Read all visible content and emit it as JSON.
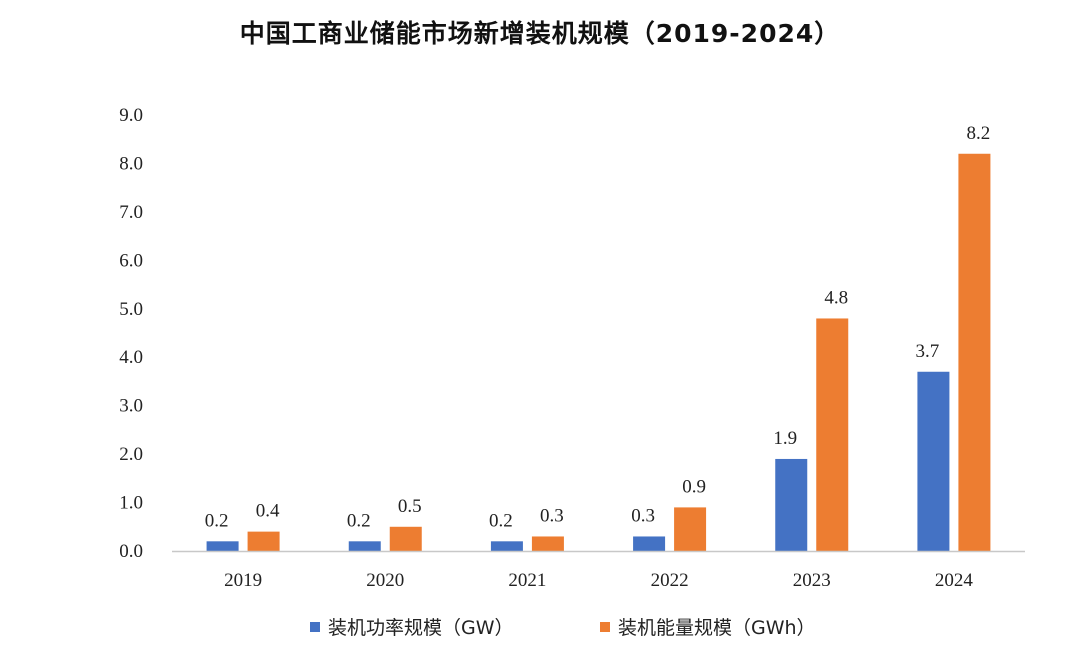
{
  "chart_data": {
    "type": "bar",
    "title": "中国工商业储能市场新增装机规模（2019-2024）",
    "categories": [
      "2019",
      "2020",
      "2021",
      "2022",
      "2023",
      "2024"
    ],
    "series": [
      {
        "name": "装机功率规模（GW）",
        "color": "#4472C4",
        "values": [
          0.2,
          0.2,
          0.2,
          0.3,
          1.9,
          3.7
        ]
      },
      {
        "name": "装机能量规模（GWh）",
        "color": "#ED7D31",
        "values": [
          0.4,
          0.5,
          0.3,
          0.9,
          4.8,
          8.2
        ]
      }
    ],
    "ylim": [
      0,
      9
    ],
    "yticks": [
      "0.0",
      "1.0",
      "2.0",
      "3.0",
      "4.0",
      "5.0",
      "6.0",
      "7.0",
      "8.0",
      "9.0"
    ],
    "xlabel": "",
    "ylabel": "",
    "grid": false,
    "legend_position": "bottom"
  }
}
